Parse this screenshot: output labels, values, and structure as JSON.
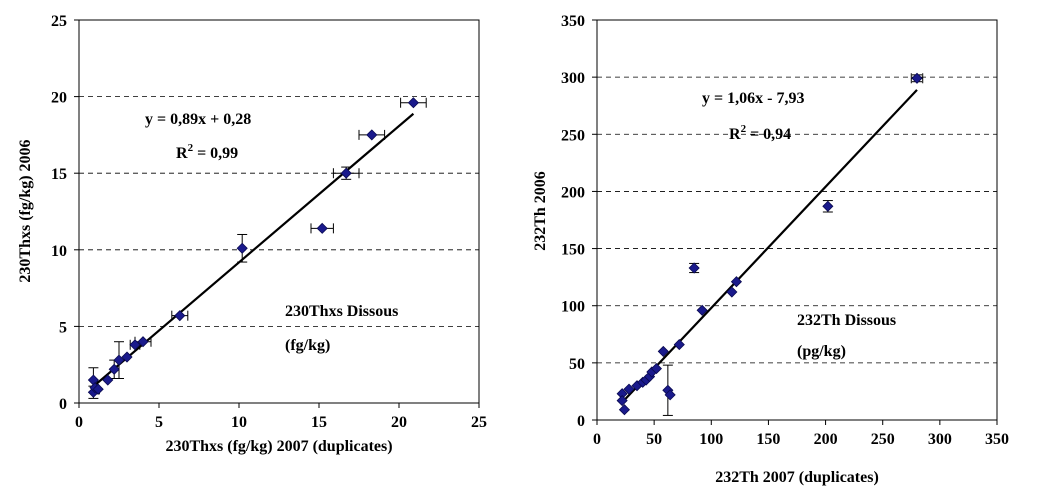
{
  "chart_data": [
    {
      "type": "scatter",
      "xlabel": "230Thxs (fg/kg) 2007 (duplicates)",
      "ylabel": "230Thxs (fg/kg) 2006",
      "xlim": [
        0,
        25
      ],
      "ylim": [
        0,
        25
      ],
      "xticks": [
        "0",
        "5",
        "10",
        "15",
        "20",
        "25"
      ],
      "yticks": [
        "0",
        "5",
        "10",
        "15",
        "20",
        "25"
      ],
      "grid": "horizontal dashed",
      "marker_color": "#1a1a8c",
      "equation": "y = 0,89x + 0,28",
      "r2_label": "R",
      "r2_sup": "2",
      "r2_value": " = 0,99",
      "annotation_line1": "230Thxs Dissous",
      "annotation_line2": "(fg/kg)",
      "trendline": {
        "slope": 0.89,
        "intercept": 0.28,
        "x_range": [
          0.8,
          20.9
        ]
      },
      "points": [
        {
          "x": 0.9,
          "y": 0.7,
          "yerr": 0.4
        },
        {
          "x": 0.9,
          "y": 1.5,
          "yerr": 0.8
        },
        {
          "x": 1.0,
          "y": 1.0,
          "yerr": 0.4
        },
        {
          "x": 1.2,
          "y": 0.9
        },
        {
          "x": 1.8,
          "y": 1.5
        },
        {
          "x": 2.2,
          "y": 2.2,
          "yerr": 0.6
        },
        {
          "x": 2.5,
          "y": 2.8,
          "yerr": 1.2
        },
        {
          "x": 3.0,
          "y": 3.0
        },
        {
          "x": 3.5,
          "y": 3.8,
          "xerr": 0.3
        },
        {
          "x": 4.0,
          "y": 4.0,
          "xerr": 0.5
        },
        {
          "x": 6.3,
          "y": 5.7,
          "xerr": 0.5
        },
        {
          "x": 10.2,
          "y": 10.1,
          "yerr": 0.9
        },
        {
          "x": 15.2,
          "y": 11.4,
          "xerr": 0.7
        },
        {
          "x": 16.7,
          "y": 15.0,
          "xerr": 0.8,
          "yerr": 0.4
        },
        {
          "x": 18.3,
          "y": 17.5,
          "xerr": 0.8
        },
        {
          "x": 20.9,
          "y": 19.6,
          "xerr": 0.8
        }
      ]
    },
    {
      "type": "scatter",
      "xlabel": "232Th 2007 (duplicates)",
      "ylabel": "232Th 2006",
      "xlim": [
        0,
        350
      ],
      "ylim": [
        0,
        350
      ],
      "xticks": [
        "0",
        "50",
        "100",
        "150",
        "200",
        "250",
        "300",
        "350"
      ],
      "yticks": [
        "0",
        "50",
        "100",
        "150",
        "200",
        "250",
        "300",
        "350"
      ],
      "grid": "horizontal dashed",
      "marker_color": "#1a1a8c",
      "equation": "y = 1,06x - 7,93",
      "r2_label": "R",
      "r2_sup": "2",
      "r2_value": " = 0,94",
      "annotation_line1": "232Th Dissous",
      "annotation_line2": "(pg/kg)",
      "trendline": {
        "slope": 1.06,
        "intercept": -7.93,
        "x_range": [
          22,
          280
        ]
      },
      "points": [
        {
          "x": 22,
          "y": 23
        },
        {
          "x": 22,
          "y": 17
        },
        {
          "x": 24,
          "y": 9
        },
        {
          "x": 28,
          "y": 27
        },
        {
          "x": 35,
          "y": 30
        },
        {
          "x": 40,
          "y": 33
        },
        {
          "x": 43,
          "y": 35
        },
        {
          "x": 46,
          "y": 38
        },
        {
          "x": 48,
          "y": 42
        },
        {
          "x": 52,
          "y": 45
        },
        {
          "x": 58,
          "y": 60
        },
        {
          "x": 62,
          "y": 26,
          "yerr": 22
        },
        {
          "x": 64,
          "y": 22
        },
        {
          "x": 72,
          "y": 66
        },
        {
          "x": 85,
          "y": 133,
          "yerr": 4
        },
        {
          "x": 92,
          "y": 96
        },
        {
          "x": 118,
          "y": 112
        },
        {
          "x": 122,
          "y": 121
        },
        {
          "x": 202,
          "y": 187,
          "yerr": 5
        },
        {
          "x": 280,
          "y": 299,
          "xerr": 5,
          "yerr": 3
        }
      ]
    }
  ]
}
